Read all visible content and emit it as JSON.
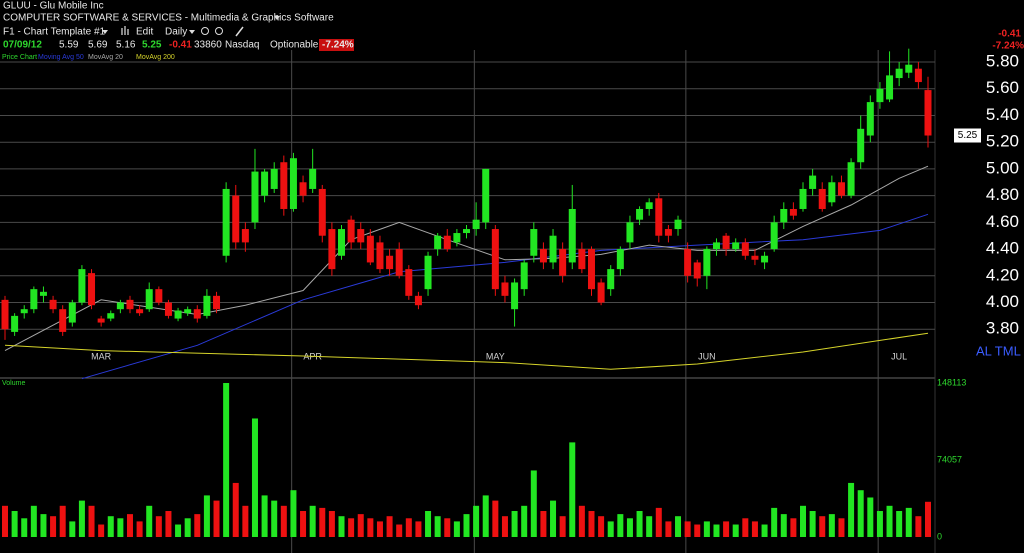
{
  "header": {
    "symbol_line": "GLUU - Glu Mobile Inc",
    "industry": "COMPUTER SOFTWARE & SERVICES - Multimedia & Graphics Software",
    "template": "F1 - Chart Template #1",
    "edit": "Edit",
    "period": "Daily",
    "quote": {
      "date": "07/09/12",
      "open": 5.59,
      "high": 5.69,
      "low": 5.16,
      "close": 5.25,
      "change": -0.41,
      "volume": 33860,
      "exchange": "Nasdaq",
      "optionable": "Optionable",
      "change_pct": "-7.24%"
    },
    "tools": "AL TML"
  },
  "chart_data": [
    {
      "type": "candlestick",
      "title": "Price Chart",
      "categories": [
        null,
        null,
        null,
        null,
        null,
        null,
        null,
        null,
        null,
        null,
        "MAR",
        null,
        null,
        null,
        null,
        null,
        null,
        null,
        null,
        null,
        null,
        null,
        null,
        null,
        null,
        null,
        null,
        null,
        null,
        null,
        null,
        null,
        "APR",
        null,
        null,
        null,
        null,
        null,
        null,
        null,
        null,
        null,
        null,
        null,
        null,
        null,
        null,
        null,
        null,
        null,
        null,
        "MAY",
        null,
        null,
        null,
        null,
        null,
        null,
        null,
        null,
        null,
        null,
        null,
        null,
        null,
        null,
        null,
        null,
        null,
        null,
        null,
        null,
        null,
        "JUN",
        null,
        null,
        null,
        null,
        null,
        null,
        null,
        null,
        null,
        null,
        null,
        null,
        null,
        null,
        null,
        null,
        null,
        null,
        null,
        "JUL",
        null,
        null,
        null
      ],
      "open": [
        4.02,
        3.78,
        3.92,
        3.95,
        4.05,
        4.02,
        3.95,
        3.85,
        4.0,
        4.22,
        3.88,
        3.88,
        3.95,
        4.02,
        3.95,
        3.95,
        4.1,
        4.0,
        3.88,
        3.92,
        3.95,
        3.9,
        4.05,
        4.35,
        4.8,
        4.55,
        4.6,
        4.8,
        4.85,
        5.05,
        4.7,
        4.9,
        4.85,
        4.85,
        4.55,
        4.35,
        4.62,
        4.55,
        4.5,
        4.45,
        4.35,
        4.4,
        4.25,
        4.05,
        4.1,
        4.4,
        4.5,
        4.45,
        4.52,
        4.55,
        4.6,
        4.55,
        4.15,
        3.95,
        4.1,
        4.35,
        4.4,
        4.3,
        4.4,
        4.3,
        4.4,
        4.4,
        4.15,
        4.1,
        4.25,
        4.45,
        4.62,
        4.7,
        4.78,
        4.55,
        4.55,
        4.4,
        4.3,
        4.2,
        4.4,
        4.5,
        4.4,
        4.45,
        4.35,
        4.3,
        4.4,
        4.6,
        4.7,
        4.7,
        4.85,
        4.85,
        4.75,
        4.9,
        4.8,
        5.05,
        5.25,
        5.5,
        5.52,
        5.68,
        5.72,
        5.75,
        5.59
      ],
      "high": [
        4.05,
        3.92,
        3.98,
        4.12,
        4.12,
        4.05,
        3.98,
        4.02,
        4.28,
        4.25,
        3.9,
        3.94,
        4.02,
        4.05,
        3.98,
        4.15,
        4.12,
        4.02,
        3.96,
        3.97,
        3.98,
        4.1,
        4.08,
        4.9,
        4.88,
        4.6,
        5.15,
        5.0,
        5.05,
        5.1,
        5.12,
        4.95,
        5.15,
        4.88,
        4.6,
        4.58,
        4.65,
        4.6,
        4.55,
        4.5,
        4.4,
        4.45,
        4.28,
        4.08,
        4.38,
        4.52,
        4.55,
        4.55,
        4.58,
        4.75,
        5.0,
        4.58,
        4.2,
        4.18,
        4.32,
        4.6,
        4.45,
        4.55,
        4.45,
        4.88,
        4.45,
        4.42,
        4.18,
        4.28,
        4.42,
        4.65,
        4.72,
        4.78,
        4.82,
        4.58,
        4.65,
        4.45,
        4.32,
        4.42,
        4.48,
        4.52,
        4.48,
        4.48,
        4.4,
        4.38,
        4.65,
        4.75,
        4.75,
        4.9,
        5.0,
        4.9,
        4.95,
        4.95,
        5.08,
        5.4,
        5.55,
        5.65,
        5.88,
        5.8,
        5.9,
        5.8,
        5.69
      ],
      "low": [
        3.72,
        3.75,
        3.88,
        3.92,
        4.0,
        3.92,
        3.75,
        3.82,
        3.98,
        3.95,
        3.82,
        3.86,
        3.92,
        3.92,
        3.9,
        3.93,
        3.98,
        3.88,
        3.86,
        3.9,
        3.85,
        3.88,
        3.92,
        4.3,
        4.4,
        4.38,
        4.55,
        4.75,
        4.82,
        4.65,
        4.68,
        4.75,
        4.82,
        4.45,
        4.2,
        4.32,
        4.4,
        4.4,
        4.28,
        4.22,
        4.2,
        4.18,
        4.02,
        3.95,
        4.05,
        4.35,
        4.38,
        4.42,
        4.48,
        4.5,
        4.55,
        4.05,
        4.0,
        3.82,
        4.05,
        4.3,
        4.25,
        4.25,
        4.15,
        4.25,
        4.22,
        4.05,
        3.98,
        4.05,
        4.2,
        4.4,
        4.58,
        4.65,
        4.45,
        4.45,
        4.5,
        4.15,
        4.12,
        4.1,
        4.35,
        4.35,
        4.38,
        4.32,
        4.28,
        4.25,
        4.38,
        4.55,
        4.62,
        4.68,
        4.8,
        4.68,
        4.72,
        4.78,
        4.78,
        5.0,
        5.2,
        5.45,
        5.5,
        5.62,
        5.68,
        5.6,
        5.16
      ],
      "close": [
        3.8,
        3.9,
        3.95,
        4.1,
        4.08,
        3.95,
        3.78,
        4.0,
        4.25,
        3.98,
        3.85,
        3.92,
        4.0,
        3.95,
        3.92,
        4.1,
        4.0,
        3.9,
        3.94,
        3.95,
        3.88,
        4.05,
        3.95,
        4.85,
        4.45,
        4.45,
        4.98,
        4.98,
        5.0,
        4.7,
        5.08,
        4.8,
        5.0,
        4.5,
        4.25,
        4.55,
        4.45,
        4.45,
        4.3,
        4.25,
        4.25,
        4.2,
        4.05,
        3.98,
        4.35,
        4.5,
        4.4,
        4.52,
        4.55,
        4.62,
        5.0,
        4.1,
        4.05,
        4.15,
        4.3,
        4.55,
        4.3,
        4.5,
        4.2,
        4.7,
        4.25,
        4.1,
        4.0,
        4.25,
        4.4,
        4.6,
        4.7,
        4.75,
        4.5,
        4.5,
        4.62,
        4.2,
        4.18,
        4.4,
        4.45,
        4.4,
        4.45,
        4.35,
        4.32,
        4.35,
        4.6,
        4.7,
        4.65,
        4.85,
        4.95,
        4.7,
        4.9,
        4.8,
        5.05,
        5.3,
        5.5,
        5.6,
        5.7,
        5.75,
        5.78,
        5.65,
        5.25
      ],
      "up_color": "#22e622",
      "down_color": "#ee1111",
      "series": [
        {
          "name": "Moving Avg 50",
          "color": "#2a3ad8",
          "x": [
            8,
            20,
            31,
            41,
            52,
            62,
            72,
            83,
            91,
            96
          ],
          "values": [
            3.43,
            3.68,
            4.02,
            4.23,
            4.3,
            4.39,
            4.43,
            4.47,
            4.54,
            4.66
          ]
        },
        {
          "name": "MovAvg 20",
          "color": "#a8a8a8",
          "x": [
            0,
            10,
            20,
            25,
            31,
            36,
            41,
            46,
            52,
            57,
            62,
            67,
            72,
            78,
            83,
            88,
            93,
            96
          ],
          "values": [
            3.64,
            4.02,
            3.91,
            3.98,
            4.09,
            4.47,
            4.6,
            4.47,
            4.32,
            4.33,
            4.36,
            4.43,
            4.39,
            4.39,
            4.57,
            4.73,
            4.93,
            5.02
          ]
        },
        {
          "name": "MovAvg 200",
          "color": "#d6d42a",
          "x": [
            0,
            10,
            31,
            52,
            63,
            72,
            83,
            96
          ],
          "values": [
            3.68,
            3.64,
            3.6,
            3.55,
            3.5,
            3.54,
            3.63,
            3.77
          ]
        }
      ],
      "ylim": [
        3.45,
        5.89
      ],
      "yticks": [
        {
          "value": 5.8,
          "label": "5.80"
        },
        {
          "value": 5.6,
          "label": "5.60"
        },
        {
          "value": 5.4,
          "label": "5.40"
        },
        {
          "value": 5.2,
          "label": "5.20"
        },
        {
          "value": 5.0,
          "label": "5.00"
        },
        {
          "value": 4.8,
          "label": "4.80"
        },
        {
          "value": 4.6,
          "label": "4.60"
        },
        {
          "value": 4.4,
          "label": "4.40"
        },
        {
          "value": 4.2,
          "label": "4.20"
        },
        {
          "value": 4.0,
          "label": "4.00"
        },
        {
          "value": 3.8,
          "label": "3.80"
        }
      ],
      "grid": true
    },
    {
      "type": "bar",
      "title": "Volume",
      "values": [
        30000,
        25000,
        18000,
        30000,
        22000,
        20000,
        30000,
        15000,
        35000,
        30000,
        12000,
        20000,
        18000,
        22000,
        15000,
        30000,
        20000,
        25000,
        12000,
        18000,
        22000,
        40000,
        35000,
        148113,
        52000,
        30000,
        114000,
        40000,
        35000,
        30000,
        45000,
        25000,
        30000,
        28000,
        25000,
        20000,
        18000,
        22000,
        18000,
        15000,
        20000,
        12000,
        18000,
        15000,
        25000,
        20000,
        18000,
        15000,
        22000,
        30000,
        40000,
        35000,
        20000,
        25000,
        30000,
        64000,
        25000,
        35000,
        20000,
        91000,
        30000,
        25000,
        20000,
        15000,
        22000,
        18000,
        25000,
        20000,
        28000,
        15000,
        20000,
        15000,
        12000,
        15000,
        12000,
        15000,
        12000,
        18000,
        15000,
        12000,
        28000,
        22000,
        18000,
        30000,
        25000,
        20000,
        22000,
        18000,
        52000,
        45000,
        38000,
        25000,
        30000,
        25000,
        28000,
        20000,
        33860
      ],
      "ylim": [
        0,
        148113
      ],
      "yticks": [
        0,
        74057,
        148113
      ],
      "grid": false
    }
  ]
}
